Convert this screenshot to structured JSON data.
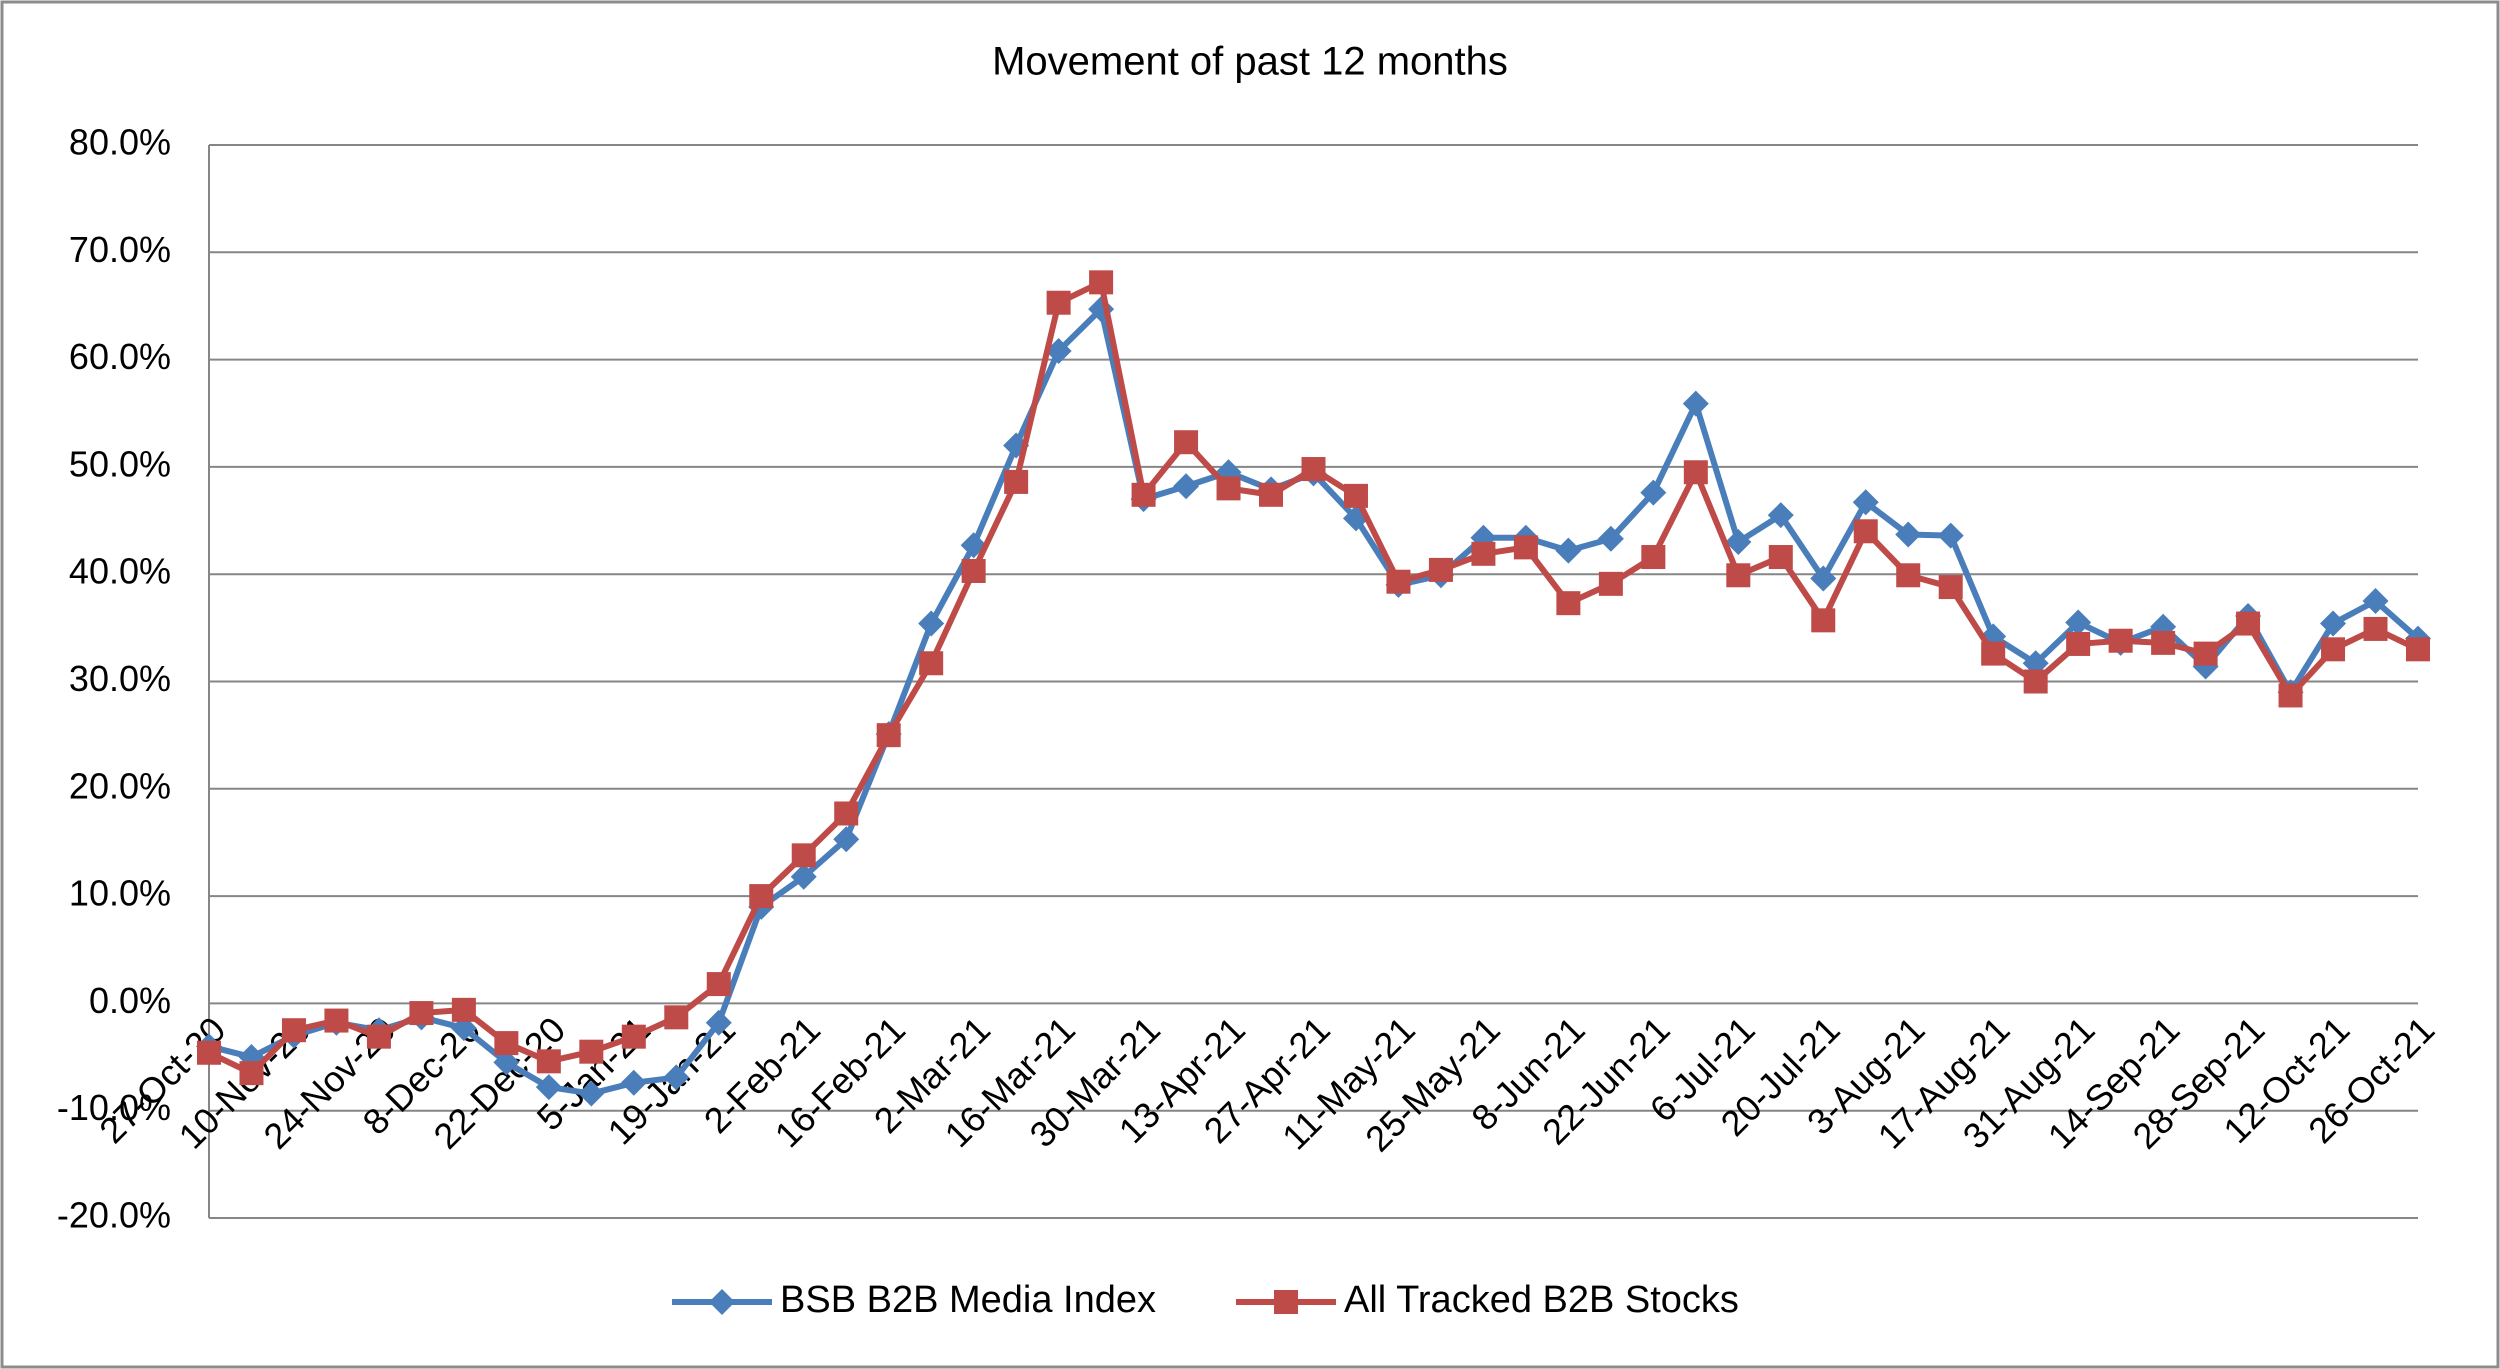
{
  "chart_data": {
    "type": "line",
    "title": "Movement of past 12 months",
    "categories": [
      "27-Oct-20",
      null,
      "10-Nov-20",
      null,
      "24-Nov-20",
      null,
      "8-Dec-20",
      null,
      "22-Dec-20",
      null,
      "5-Jan-21",
      null,
      "19-Jan-21",
      null,
      "2-Feb-21",
      null,
      "16-Feb-21",
      null,
      "2-Mar-21",
      null,
      "16-Mar-21",
      null,
      "30-Mar-21",
      null,
      "13-Apr-21",
      null,
      "27-Apr-21",
      null,
      "11-May-21",
      null,
      "25-May-21",
      null,
      "8-Jun-21",
      null,
      "22-Jun-21",
      null,
      "6-Jul-21",
      null,
      "20-Jul-21",
      null,
      "3-Aug-21",
      null,
      "17-Aug-21",
      null,
      "31-Aug-21",
      null,
      "14-Sep-21",
      null,
      "28-Sep-21",
      null,
      "12-Oct-21",
      null,
      "26-Oct-21"
    ],
    "series": [
      {
        "name": "BSB B2B Media Index",
        "color": "#4a7ebb",
        "marker": "diamond",
        "values": [
          -4.0,
          -5.0,
          -3.0,
          -1.8,
          -2.5,
          -1.3,
          -2.3,
          -5.5,
          -7.8,
          -8.4,
          -7.4,
          -6.9,
          -1.8,
          9.0,
          11.8,
          15.3,
          25.1,
          35.4,
          42.7,
          52.0,
          60.8,
          64.7,
          47.0,
          48.2,
          49.5,
          47.9,
          49.4,
          45.2,
          39.0,
          39.9,
          43.4,
          43.4,
          42.2,
          43.3,
          47.6,
          55.9,
          43.0,
          45.5,
          39.6,
          46.7,
          43.7,
          43.6,
          34.2,
          31.7,
          35.5,
          33.6,
          35.1,
          31.4,
          36.1,
          29.0,
          35.4,
          37.5,
          34.0
        ]
      },
      {
        "name": "All Tracked B2B Stocks",
        "color": "#be4b48",
        "marker": "square",
        "values": [
          -4.6,
          -6.5,
          -2.5,
          -1.6,
          -3.1,
          -0.9,
          -0.6,
          -3.7,
          -5.4,
          -4.5,
          -3.1,
          -1.3,
          1.8,
          10.0,
          13.8,
          17.7,
          25.0,
          31.7,
          40.3,
          48.6,
          65.3,
          67.2,
          47.4,
          52.3,
          48.0,
          47.4,
          49.8,
          47.3,
          39.3,
          40.4,
          41.9,
          42.5,
          37.3,
          39.1,
          41.6,
          49.5,
          39.9,
          41.6,
          35.7,
          44.0,
          39.9,
          38.8,
          32.6,
          30.0,
          33.5,
          33.8,
          33.6,
          32.6,
          35.4,
          28.7,
          33.0,
          34.9,
          33.0
        ]
      }
    ],
    "ylim": [
      -20,
      80
    ],
    "yticks": [
      {
        "value": -20,
        "label": "-20.0%"
      },
      {
        "value": -10,
        "label": "-10.0%"
      },
      {
        "value": 0,
        "label": "0.0%"
      },
      {
        "value": 10,
        "label": "10.0%"
      },
      {
        "value": 20,
        "label": "20.0%"
      },
      {
        "value": 30,
        "label": "30.0%"
      },
      {
        "value": 40,
        "label": "40.0%"
      },
      {
        "value": 50,
        "label": "50.0%"
      },
      {
        "value": 60,
        "label": "60.0%"
      },
      {
        "value": 70,
        "label": "70.0%"
      },
      {
        "value": 80,
        "label": "80.0%"
      }
    ],
    "grid": true,
    "legend": "bottom"
  }
}
